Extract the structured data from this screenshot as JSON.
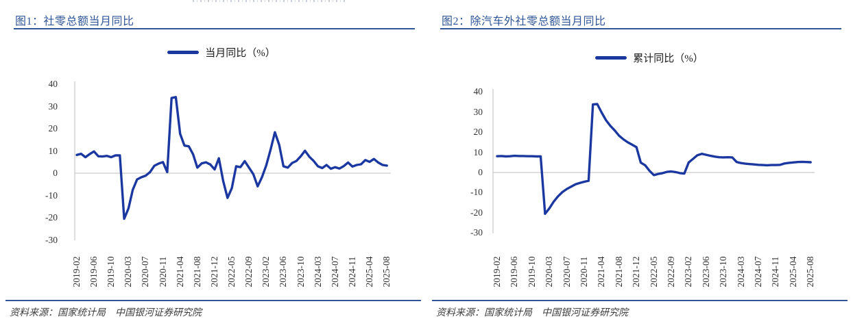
{
  "figures": [
    {
      "title": "图1：社零总额当月同比",
      "legend_label": "当月同比（%）",
      "source": "资料来源：国家统计局　中国银河证券研究院"
    },
    {
      "title": "图2：除汽车外社零总额当月同比",
      "legend_label": "累计同比（%）",
      "source": "资料来源：国家统计局　中国银河证券研究院"
    }
  ],
  "colors": {
    "title_blue": "#2F5597",
    "line_navy": "#1B38A0",
    "grid_gray": "#C9C9C9",
    "tick_label": "#333333"
  },
  "chart_data": [
    {
      "type": "line",
      "title": "图1：社零总额当月同比",
      "series": [
        {
          "name": "当月同比（%）",
          "values": [
            8.2,
            8.7,
            7.2,
            8.6,
            9.8,
            7.6,
            7.5,
            7.8,
            7.2,
            8.0,
            8.0,
            -20.5,
            -15.8,
            -7.5,
            -2.8,
            -1.8,
            -1.1,
            0.5,
            3.3,
            4.3,
            5.0,
            0.5,
            33.8,
            34.2,
            17.7,
            12.4,
            12.1,
            8.5,
            2.5,
            4.4,
            4.9,
            3.9,
            1.7,
            6.7,
            -3.5,
            -11.1,
            -6.7,
            3.1,
            2.7,
            5.4,
            2.5,
            -0.5,
            -5.9,
            -1.8,
            3.5,
            10.6,
            18.4,
            12.7,
            3.1,
            2.5,
            4.6,
            5.5,
            7.6,
            10.1,
            7.4,
            5.5,
            3.1,
            2.3,
            3.7,
            2.0,
            2.7,
            2.1,
            3.2,
            4.8,
            3.0,
            3.7,
            4.0,
            5.9,
            5.1,
            6.4,
            4.8,
            3.7,
            3.4
          ]
        }
      ],
      "x": [
        "2019-02",
        "2019-03",
        "2019-04",
        "2019-05",
        "2019-06",
        "2019-07",
        "2019-08",
        "2019-09",
        "2019-10",
        "2019-11",
        "2019-12",
        "2020-02",
        "2020-03",
        "2020-04",
        "2020-05",
        "2020-06",
        "2020-07",
        "2020-08",
        "2020-09",
        "2020-10",
        "2020-11",
        "2020-12",
        "2021-02",
        "2021-03",
        "2021-04",
        "2021-05",
        "2021-06",
        "2021-07",
        "2021-08",
        "2021-09",
        "2021-10",
        "2021-11",
        "2021-12",
        "2022-02",
        "2022-03",
        "2022-04",
        "2022-05",
        "2022-06",
        "2022-07",
        "2022-08",
        "2022-09",
        "2022-10",
        "2022-11",
        "2022-12",
        "2023-02",
        "2023-03",
        "2023-04",
        "2023-05",
        "2023-06",
        "2023-07",
        "2023-08",
        "2023-09",
        "2023-10",
        "2023-11",
        "2023-12",
        "2024-02",
        "2024-03",
        "2024-04",
        "2024-05",
        "2024-06",
        "2024-07",
        "2024-08",
        "2024-09",
        "2024-10",
        "2024-11",
        "2024-12",
        "2025-02",
        "2025-03",
        "2025-04",
        "2025-05",
        "2025-06",
        "2025-07",
        "2025-08"
      ],
      "x_tick_labels": [
        "2019-02",
        "2019-06",
        "2019-10",
        "2020-03",
        "2020-07",
        "2020-11",
        "2021-04",
        "2021-08",
        "2021-12",
        "2022-05",
        "2022-09",
        "2023-02",
        "2023-06",
        "2023-10",
        "2024-03",
        "2024-07",
        "2024-11",
        "2025-04",
        "2025-08"
      ],
      "x_tick_every": 4,
      "yticks": [
        40,
        30,
        20,
        10,
        0,
        -10,
        -20,
        -30
      ],
      "ylim": [
        -30,
        40
      ],
      "grid": "zero-baseline-only",
      "legend_position": "top-center"
    },
    {
      "type": "line",
      "title": "图2：除汽车外社零总额当月同比",
      "series": [
        {
          "name": "累计同比（%）",
          "values": [
            8.1,
            8.2,
            8.0,
            8.1,
            8.3,
            8.2,
            8.2,
            8.1,
            8.1,
            8.0,
            8.0,
            -20.5,
            -17.8,
            -14.5,
            -11.8,
            -9.7,
            -8.2,
            -7.0,
            -5.9,
            -5.2,
            -4.6,
            -4.1,
            33.8,
            34.0,
            29.8,
            26.0,
            23.2,
            20.9,
            18.3,
            16.5,
            15.0,
            13.8,
            12.6,
            4.9,
            3.6,
            0.8,
            -1.3,
            -0.7,
            -0.3,
            0.3,
            0.5,
            0.2,
            -0.3,
            -0.5,
            5.0,
            6.8,
            8.6,
            9.3,
            8.8,
            8.3,
            7.9,
            7.6,
            7.5,
            7.6,
            7.5,
            5.2,
            4.7,
            4.4,
            4.2,
            4.0,
            3.8,
            3.7,
            3.6,
            3.7,
            3.7,
            3.8,
            4.5,
            4.8,
            5.0,
            5.2,
            5.3,
            5.2,
            5.1
          ]
        }
      ],
      "x": [
        "2019-02",
        "2019-03",
        "2019-04",
        "2019-05",
        "2019-06",
        "2019-07",
        "2019-08",
        "2019-09",
        "2019-10",
        "2019-11",
        "2019-12",
        "2020-02",
        "2020-03",
        "2020-04",
        "2020-05",
        "2020-06",
        "2020-07",
        "2020-08",
        "2020-09",
        "2020-10",
        "2020-11",
        "2020-12",
        "2021-02",
        "2021-03",
        "2021-04",
        "2021-05",
        "2021-06",
        "2021-07",
        "2021-08",
        "2021-09",
        "2021-10",
        "2021-11",
        "2021-12",
        "2022-02",
        "2022-03",
        "2022-04",
        "2022-05",
        "2022-06",
        "2022-07",
        "2022-08",
        "2022-09",
        "2022-10",
        "2022-11",
        "2022-12",
        "2023-02",
        "2023-03",
        "2023-04",
        "2023-05",
        "2023-06",
        "2023-07",
        "2023-08",
        "2023-09",
        "2023-10",
        "2023-11",
        "2023-12",
        "2024-02",
        "2024-03",
        "2024-04",
        "2024-05",
        "2024-06",
        "2024-07",
        "2024-08",
        "2024-09",
        "2024-10",
        "2024-11",
        "2024-12",
        "2025-02",
        "2025-03",
        "2025-04",
        "2025-05",
        "2025-06",
        "2025-07",
        "2025-08"
      ],
      "x_tick_labels": [
        "2019-02",
        "2019-06",
        "2019-10",
        "2020-03",
        "2020-07",
        "2020-11",
        "2021-04",
        "2021-08",
        "2021-12",
        "2022-05",
        "2022-09",
        "2023-02",
        "2023-06",
        "2023-10",
        "2024-03",
        "2024-07",
        "2024-11",
        "2025-04",
        "2025-08"
      ],
      "x_tick_every": 4,
      "yticks": [
        40,
        30,
        20,
        10,
        0,
        -10,
        -20,
        -30
      ],
      "ylim": [
        -30,
        40
      ],
      "grid": "zero-baseline-only",
      "legend_position": "top-center"
    }
  ]
}
